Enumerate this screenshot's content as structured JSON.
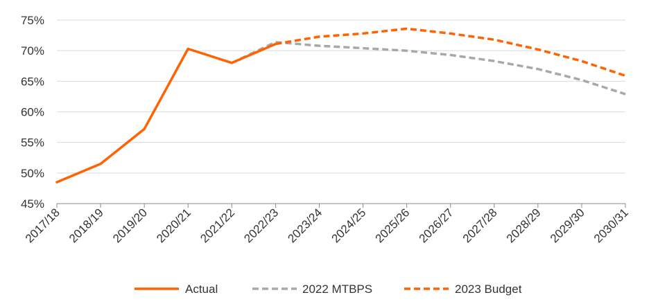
{
  "chart_data": {
    "type": "line",
    "categories": [
      "2017/18",
      "2018/19",
      "2019/20",
      "2020/21",
      "2021/22",
      "2022/23",
      "2023/24",
      "2024/25",
      "2025/26",
      "2026/27",
      "2027/28",
      "2028/29",
      "2029/30",
      "2030/31"
    ],
    "ylim": [
      45,
      75
    ],
    "yticks": [
      45,
      50,
      55,
      60,
      65,
      70,
      75
    ],
    "ytick_labels": [
      "45%",
      "50%",
      "55%",
      "60%",
      "65%",
      "70%",
      "75%"
    ],
    "grid": true,
    "legend_position": "bottom",
    "series": [
      {
        "name": "Actual",
        "style": "solid",
        "color": "#ff6200",
        "values": [
          48.5,
          51.5,
          57.2,
          70.3,
          68.0,
          71.1,
          null,
          null,
          null,
          null,
          null,
          null,
          null,
          null
        ]
      },
      {
        "name": "2022 MTBPS",
        "style": "dashed",
        "color": "#a8a8a8",
        "values": [
          null,
          null,
          null,
          null,
          68.0,
          71.4,
          70.8,
          70.4,
          70.0,
          69.3,
          68.3,
          67.0,
          65.2,
          62.9
        ]
      },
      {
        "name": "2023 Budget",
        "style": "dashed",
        "color": "#ff6200",
        "values": [
          null,
          null,
          null,
          null,
          null,
          71.1,
          72.3,
          72.8,
          73.6,
          72.8,
          71.8,
          70.2,
          68.3,
          65.9
        ]
      }
    ]
  }
}
